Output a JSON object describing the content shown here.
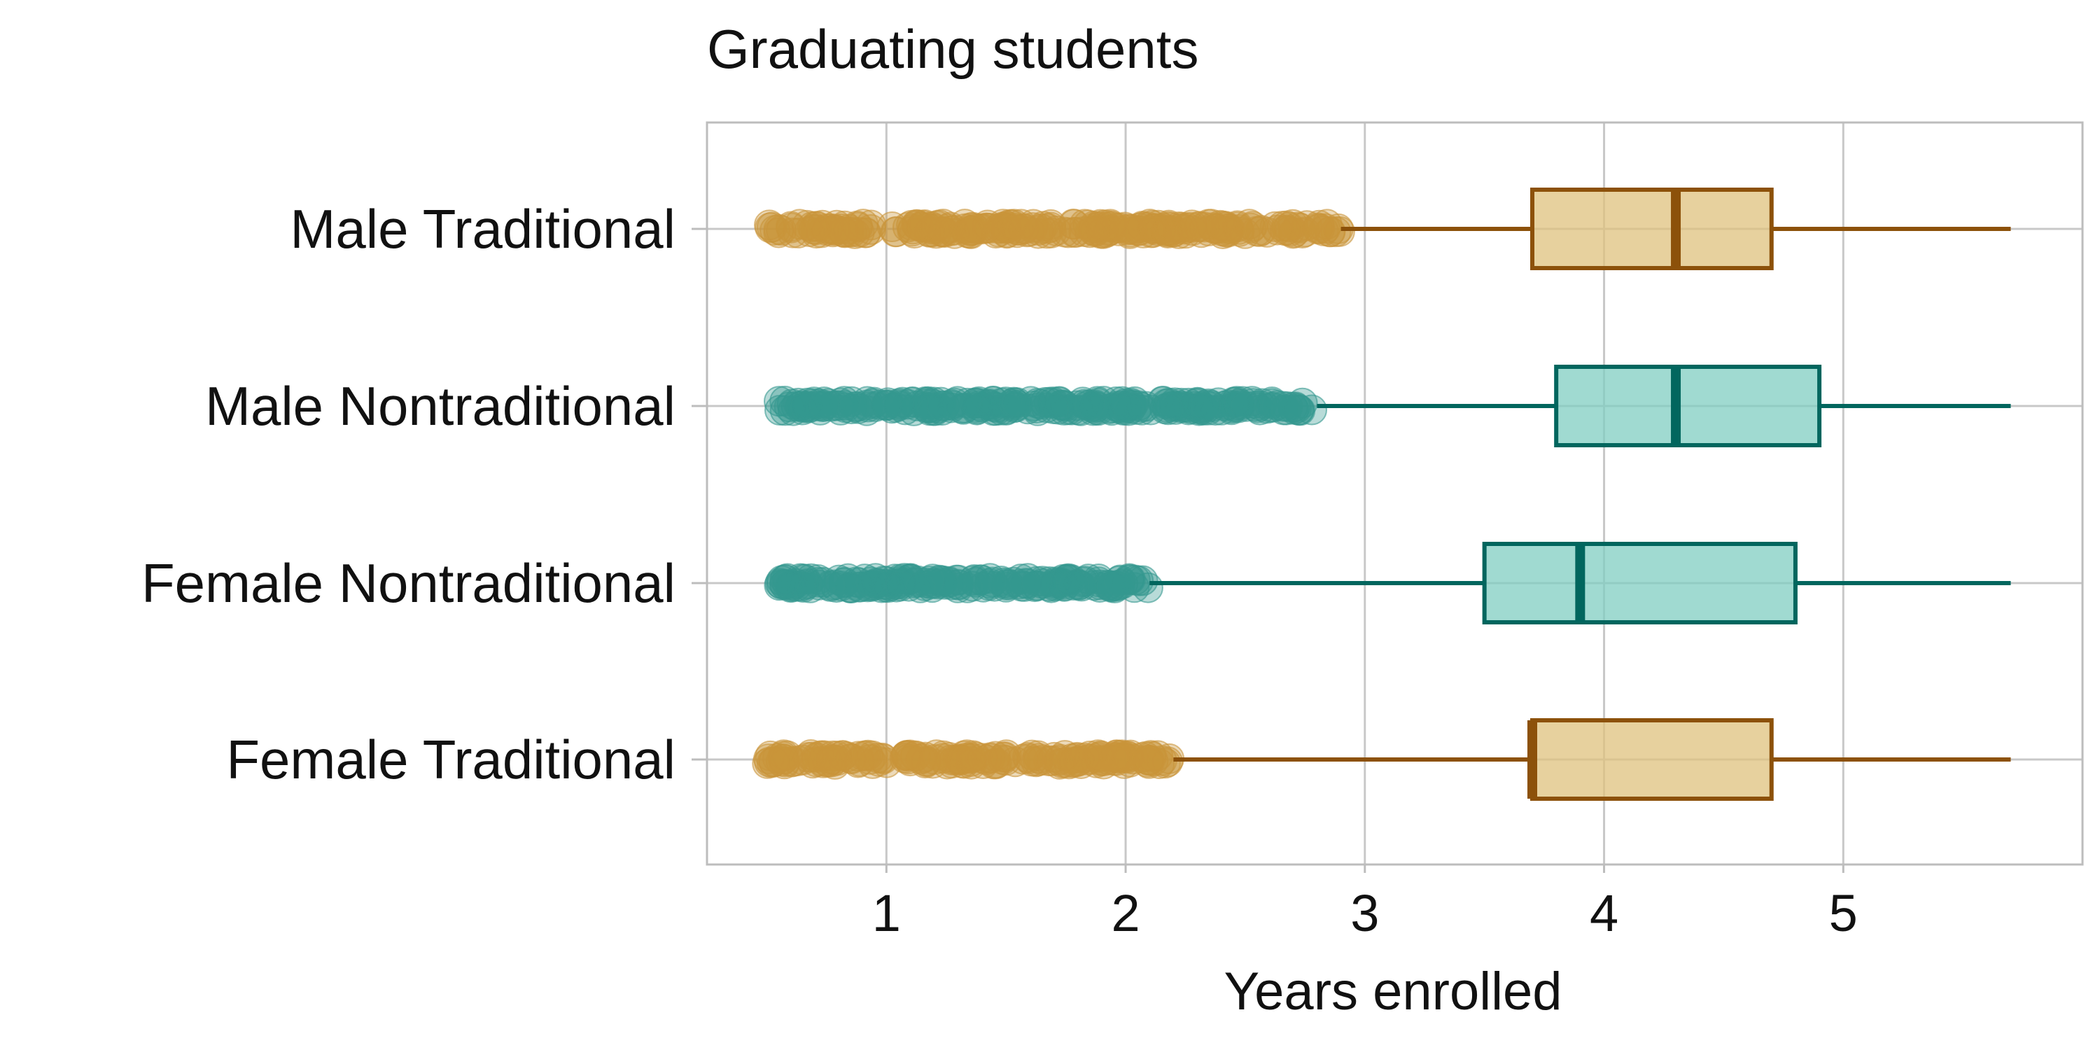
{
  "chart_data": {
    "type": "boxplot",
    "title": "Graduating students",
    "xlabel": "Years enrolled",
    "ylabel": "",
    "xlim": [
      0.25,
      6.0
    ],
    "xticks": [
      1,
      2,
      3,
      4,
      5
    ],
    "grid": true,
    "legend": "none",
    "categories": [
      "Male Traditional",
      "Male Nontraditional",
      "Female Nontraditional",
      "Female Traditional"
    ],
    "boxes": [
      {
        "category": "Male Traditional",
        "group": "Traditional",
        "whisker_low": 2.9,
        "q1": 3.7,
        "median": 4.3,
        "q3": 4.7,
        "whisker_high": 5.7,
        "outliers_range": [
          0.5,
          2.9
        ],
        "outlier_gap": [
          0.95,
          1.08
        ]
      },
      {
        "category": "Male Nontraditional",
        "group": "Nontraditional",
        "whisker_low": 2.8,
        "q1": 3.8,
        "median": 4.3,
        "q3": 4.9,
        "whisker_high": 5.7,
        "outliers_range": [
          0.55,
          2.8
        ],
        "outlier_gap": null
      },
      {
        "category": "Female Nontraditional",
        "group": "Nontraditional",
        "whisker_low": 2.1,
        "q1": 3.5,
        "median": 3.9,
        "q3": 4.8,
        "whisker_high": 5.7,
        "outliers_range": [
          0.55,
          2.1
        ],
        "outlier_gap": null
      },
      {
        "category": "Female Traditional",
        "group": "Traditional",
        "whisker_low": 2.2,
        "q1": 3.7,
        "median": 3.7,
        "q3": 4.7,
        "whisker_high": 5.7,
        "outliers_range": [
          0.5,
          2.2
        ],
        "outlier_gap": [
          0.95,
          1.08
        ]
      }
    ],
    "colors": {
      "Traditional": {
        "line": "#8c510a",
        "fill": "#dfc27d",
        "point": "#c9953a"
      },
      "Nontraditional": {
        "line": "#01665e",
        "fill": "#80cdc1",
        "point": "#35978f"
      }
    }
  }
}
